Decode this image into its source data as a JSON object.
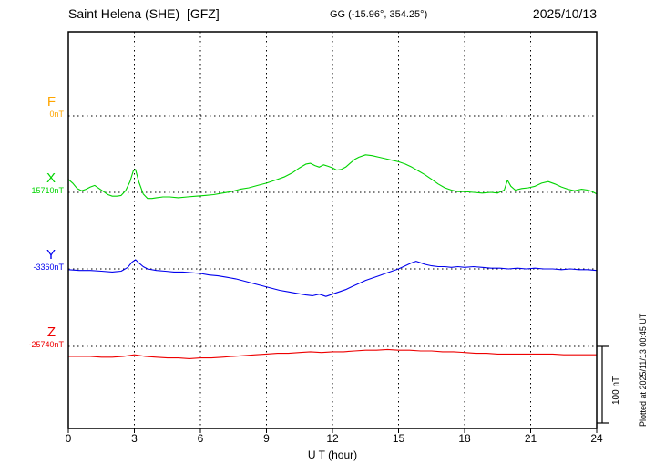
{
  "header": {
    "station_title": "Saint Helena (SHE)  [GFZ]",
    "coords": "GG (-15.96°, 354.25°)",
    "date": "2025/10/13"
  },
  "axis": {
    "xlabel": "U T (hour)"
  },
  "scale_bar": {
    "label": "100 nT"
  },
  "side_note": "Plotted at 2025/11/13 00:45 UT",
  "chart_data": {
    "type": "line",
    "title": "Saint Helena (SHE) [GFZ] magnetogram 2025/10/13",
    "xlabel": "U T (hour)",
    "ylabel": "",
    "x_range": [
      0,
      24
    ],
    "x_ticks": [
      0,
      3,
      6,
      9,
      12,
      15,
      18,
      21,
      24
    ],
    "grid": "dotted vertical lines every 3 h; dotted horizontal baseline per component",
    "legend_position": "left baseline labels",
    "scale_bar_nT": 100,
    "values_unit": "nT relative to each component baseline",
    "series": [
      {
        "name": "F",
        "color": "#ffa500",
        "baseline_label": "0nT",
        "points": []
      },
      {
        "name": "X",
        "color": "#00d400",
        "baseline_label": "15710nT",
        "points": [
          [
            0,
            17
          ],
          [
            0.2,
            12
          ],
          [
            0.4,
            5
          ],
          [
            0.6,
            2
          ],
          [
            0.8,
            4
          ],
          [
            1,
            7
          ],
          [
            1.2,
            9
          ],
          [
            1.4,
            5
          ],
          [
            1.6,
            1
          ],
          [
            1.8,
            -3
          ],
          [
            2,
            -5
          ],
          [
            2.2,
            -5
          ],
          [
            2.4,
            -4
          ],
          [
            2.6,
            2
          ],
          [
            2.8,
            14
          ],
          [
            2.95,
            28
          ],
          [
            3.05,
            30
          ],
          [
            3.2,
            14
          ],
          [
            3.4,
            -2
          ],
          [
            3.6,
            -8
          ],
          [
            3.8,
            -8
          ],
          [
            4,
            -7
          ],
          [
            4.3,
            -6
          ],
          [
            4.6,
            -6
          ],
          [
            5,
            -7
          ],
          [
            5.4,
            -6
          ],
          [
            5.8,
            -5
          ],
          [
            6.2,
            -4
          ],
          [
            6.6,
            -3
          ],
          [
            7,
            -1
          ],
          [
            7.4,
            1
          ],
          [
            7.8,
            4
          ],
          [
            8.2,
            6
          ],
          [
            8.6,
            9
          ],
          [
            9,
            12
          ],
          [
            9.4,
            16
          ],
          [
            9.8,
            20
          ],
          [
            10.2,
            26
          ],
          [
            10.5,
            32
          ],
          [
            10.8,
            37
          ],
          [
            11,
            38
          ],
          [
            11.2,
            35
          ],
          [
            11.4,
            33
          ],
          [
            11.6,
            36
          ],
          [
            11.8,
            34
          ],
          [
            12,
            32
          ],
          [
            12.2,
            29
          ],
          [
            12.4,
            30
          ],
          [
            12.6,
            33
          ],
          [
            12.8,
            38
          ],
          [
            13,
            43
          ],
          [
            13.2,
            46
          ],
          [
            13.5,
            49
          ],
          [
            13.8,
            48
          ],
          [
            14.1,
            46
          ],
          [
            14.4,
            44
          ],
          [
            14.7,
            42
          ],
          [
            15,
            40
          ],
          [
            15.3,
            37
          ],
          [
            15.6,
            33
          ],
          [
            15.9,
            28
          ],
          [
            16.2,
            23
          ],
          [
            16.5,
            17
          ],
          [
            16.8,
            11
          ],
          [
            17.1,
            6
          ],
          [
            17.4,
            3
          ],
          [
            17.7,
            1
          ],
          [
            18,
            1
          ],
          [
            18.4,
            0
          ],
          [
            18.8,
            -1
          ],
          [
            19.2,
            0
          ],
          [
            19.5,
            -1
          ],
          [
            19.8,
            3
          ],
          [
            19.95,
            16
          ],
          [
            20.1,
            8
          ],
          [
            20.3,
            3
          ],
          [
            20.6,
            5
          ],
          [
            20.9,
            6
          ],
          [
            21.2,
            8
          ],
          [
            21.5,
            12
          ],
          [
            21.8,
            14
          ],
          [
            22.1,
            11
          ],
          [
            22.4,
            7
          ],
          [
            22.7,
            4
          ],
          [
            23,
            2
          ],
          [
            23.3,
            4
          ],
          [
            23.6,
            3
          ],
          [
            23.8,
            1
          ],
          [
            24,
            -2
          ]
        ]
      },
      {
        "name": "Y",
        "color": "#0000ee",
        "baseline_label": "-3360nT",
        "points": [
          [
            0,
            -1
          ],
          [
            0.5,
            -2
          ],
          [
            1,
            -2
          ],
          [
            1.5,
            -3
          ],
          [
            2,
            -4
          ],
          [
            2.4,
            -3
          ],
          [
            2.7,
            2
          ],
          [
            2.9,
            9
          ],
          [
            3.05,
            12
          ],
          [
            3.2,
            8
          ],
          [
            3.4,
            3
          ],
          [
            3.6,
            0
          ],
          [
            4,
            -2
          ],
          [
            4.4,
            -3
          ],
          [
            4.8,
            -4
          ],
          [
            5.2,
            -4
          ],
          [
            5.6,
            -5
          ],
          [
            6,
            -6
          ],
          [
            6.4,
            -8
          ],
          [
            6.8,
            -9
          ],
          [
            7.2,
            -11
          ],
          [
            7.6,
            -13
          ],
          [
            8,
            -16
          ],
          [
            8.4,
            -19
          ],
          [
            8.8,
            -22
          ],
          [
            9.2,
            -25
          ],
          [
            9.6,
            -28
          ],
          [
            10,
            -30
          ],
          [
            10.4,
            -32
          ],
          [
            10.8,
            -34
          ],
          [
            11.1,
            -35
          ],
          [
            11.4,
            -33
          ],
          [
            11.7,
            -36
          ],
          [
            12,
            -33
          ],
          [
            12.3,
            -30
          ],
          [
            12.6,
            -27
          ],
          [
            12.9,
            -23
          ],
          [
            13.2,
            -19
          ],
          [
            13.5,
            -15
          ],
          [
            13.8,
            -12
          ],
          [
            14.1,
            -9
          ],
          [
            14.4,
            -6
          ],
          [
            14.7,
            -3
          ],
          [
            15,
            0
          ],
          [
            15.3,
            4
          ],
          [
            15.6,
            8
          ],
          [
            15.8,
            10
          ],
          [
            16,
            8
          ],
          [
            16.2,
            6
          ],
          [
            16.5,
            4
          ],
          [
            16.8,
            3
          ],
          [
            17.1,
            3
          ],
          [
            17.4,
            2
          ],
          [
            17.7,
            3
          ],
          [
            18,
            2
          ],
          [
            18.4,
            3
          ],
          [
            18.8,
            2
          ],
          [
            19.2,
            1
          ],
          [
            19.6,
            1
          ],
          [
            20,
            0
          ],
          [
            20.4,
            1
          ],
          [
            20.8,
            0
          ],
          [
            21.2,
            1
          ],
          [
            21.6,
            0
          ],
          [
            22,
            0
          ],
          [
            22.4,
            -1
          ],
          [
            22.8,
            0
          ],
          [
            23.2,
            -1
          ],
          [
            23.6,
            -1
          ],
          [
            24,
            -2
          ]
        ]
      },
      {
        "name": "Z",
        "color": "#ee0000",
        "baseline_label": "-25740nT",
        "points": [
          [
            0,
            -13
          ],
          [
            0.5,
            -13
          ],
          [
            1,
            -13
          ],
          [
            1.5,
            -14
          ],
          [
            2,
            -14
          ],
          [
            2.5,
            -13
          ],
          [
            3,
            -11
          ],
          [
            3.5,
            -13
          ],
          [
            4,
            -14
          ],
          [
            4.5,
            -15
          ],
          [
            5,
            -15
          ],
          [
            5.5,
            -16
          ],
          [
            6,
            -15
          ],
          [
            6.5,
            -15
          ],
          [
            7,
            -14
          ],
          [
            7.5,
            -13
          ],
          [
            8,
            -12
          ],
          [
            8.5,
            -11
          ],
          [
            9,
            -10
          ],
          [
            9.5,
            -9
          ],
          [
            10,
            -9
          ],
          [
            10.5,
            -8
          ],
          [
            11,
            -7
          ],
          [
            11.5,
            -8
          ],
          [
            12,
            -7
          ],
          [
            12.5,
            -7
          ],
          [
            13,
            -6
          ],
          [
            13.5,
            -5
          ],
          [
            14,
            -5
          ],
          [
            14.5,
            -4
          ],
          [
            15,
            -5
          ],
          [
            15.5,
            -5
          ],
          [
            16,
            -6
          ],
          [
            16.5,
            -6
          ],
          [
            17,
            -7
          ],
          [
            17.5,
            -7
          ],
          [
            18,
            -8
          ],
          [
            18.5,
            -9
          ],
          [
            19,
            -9
          ],
          [
            19.5,
            -10
          ],
          [
            20,
            -10
          ],
          [
            20.5,
            -10
          ],
          [
            21,
            -10
          ],
          [
            21.5,
            -10
          ],
          [
            22,
            -10
          ],
          [
            22.5,
            -11
          ],
          [
            23,
            -11
          ],
          [
            23.5,
            -11
          ],
          [
            24,
            -11
          ]
        ]
      }
    ]
  }
}
